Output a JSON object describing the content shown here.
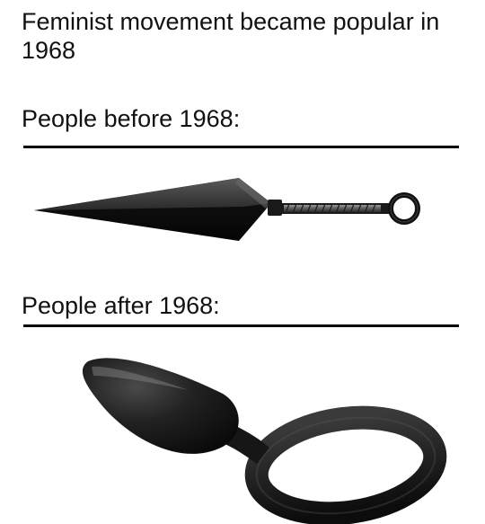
{
  "meme": {
    "headline": "Feminist movement became popular in 1968",
    "before_label": "People before 1968:",
    "after_label": "People after 1968:"
  },
  "images": {
    "before_icon": "kunai-icon",
    "after_icon": "silicone-plug-icon"
  },
  "colors": {
    "background": "#ffffff",
    "text": "#111111",
    "rule": "#000000",
    "kunai_blade": "#2a2a2a",
    "plug_body": "#1c1c1c"
  }
}
